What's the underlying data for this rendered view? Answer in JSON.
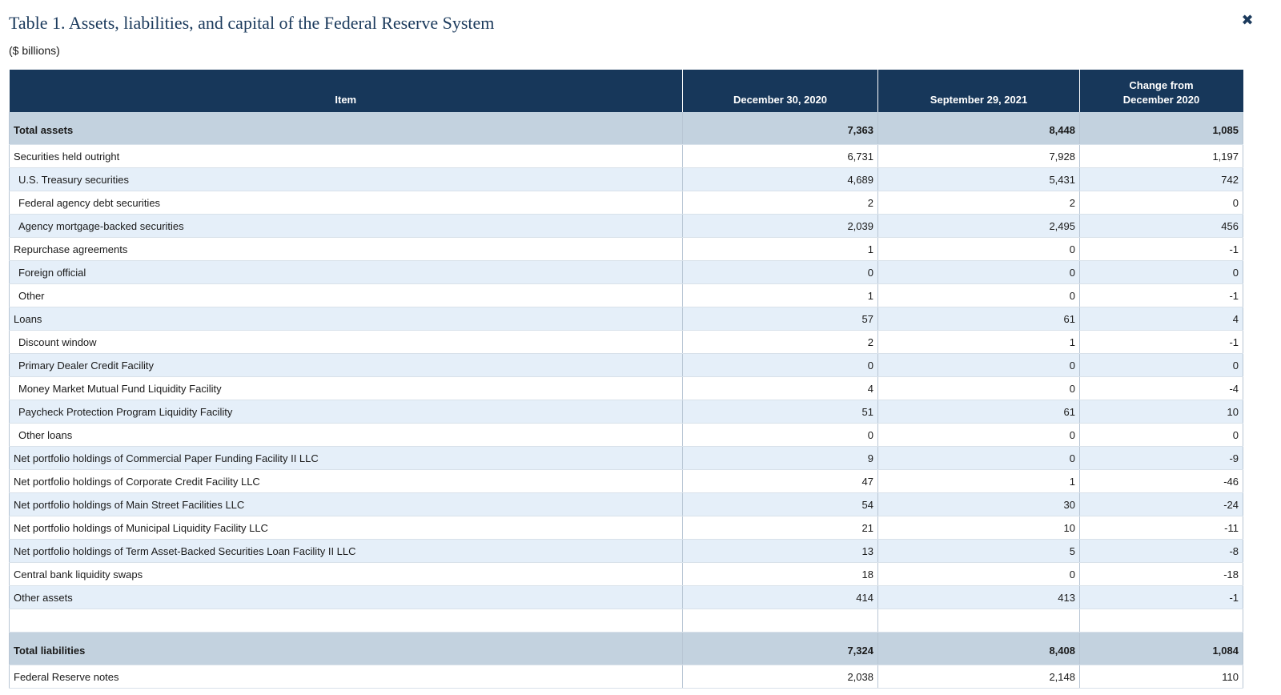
{
  "dialog": {
    "title": "Table 1. Assets, liabilities, and capital of the Federal Reserve System",
    "close_label": "✖",
    "subtitle": "($ billions)"
  },
  "table": {
    "headers": {
      "item": "Item",
      "col1": "December 30, 2020",
      "col2": "September 29, 2021",
      "col3_line1": "Change from",
      "col3_line2": "December 2020"
    },
    "rows": [
      {
        "label": "Total assets",
        "v1": "7,363",
        "v2": "8,448",
        "v3": "1,085"
      },
      {
        "label": "Securities held outright",
        "v1": "6,731",
        "v2": "7,928",
        "v3": "1,197"
      },
      {
        "label": "U.S. Treasury securities",
        "v1": "4,689",
        "v2": "5,431",
        "v3": "742"
      },
      {
        "label": "Federal agency debt securities",
        "v1": "2",
        "v2": "2",
        "v3": "0"
      },
      {
        "label": "Agency mortgage-backed securities",
        "v1": "2,039",
        "v2": "2,495",
        "v3": "456"
      },
      {
        "label": "Repurchase agreements",
        "v1": "1",
        "v2": "0",
        "v3": "-1"
      },
      {
        "label": "Foreign official",
        "v1": "0",
        "v2": "0",
        "v3": "0"
      },
      {
        "label": "Other",
        "v1": "1",
        "v2": "0",
        "v3": "-1"
      },
      {
        "label": "Loans",
        "v1": "57",
        "v2": "61",
        "v3": "4"
      },
      {
        "label": "Discount window",
        "v1": "2",
        "v2": "1",
        "v3": "-1"
      },
      {
        "label": "Primary Dealer Credit Facility",
        "v1": "0",
        "v2": "0",
        "v3": "0"
      },
      {
        "label": "Money Market Mutual Fund Liquidity Facility",
        "v1": "4",
        "v2": "0",
        "v3": "-4"
      },
      {
        "label": "Paycheck Protection Program Liquidity Facility",
        "v1": "51",
        "v2": "61",
        "v3": "10"
      },
      {
        "label": "Other loans",
        "v1": "0",
        "v2": "0",
        "v3": "0"
      },
      {
        "label": "Net portfolio holdings of Commercial Paper Funding Facility II LLC",
        "v1": "9",
        "v2": "0",
        "v3": "-9"
      },
      {
        "label": "Net portfolio holdings of Corporate Credit Facility LLC",
        "v1": "47",
        "v2": "1",
        "v3": "-46"
      },
      {
        "label": "Net portfolio holdings of Main Street Facilities LLC",
        "v1": "54",
        "v2": "30",
        "v3": "-24"
      },
      {
        "label": "Net portfolio holdings of Municipal Liquidity Facility LLC",
        "v1": "21",
        "v2": "10",
        "v3": "-11"
      },
      {
        "label": "Net portfolio holdings of Term Asset-Backed Securities Loan Facility II LLC",
        "v1": "13",
        "v2": "5",
        "v3": "-8"
      },
      {
        "label": "Central bank liquidity swaps",
        "v1": "18",
        "v2": "0",
        "v3": "-18"
      },
      {
        "label": "Other assets",
        "v1": "414",
        "v2": "413",
        "v3": "-1"
      },
      {
        "label": "",
        "v1": "",
        "v2": "",
        "v3": ""
      },
      {
        "label": "Total liabilities",
        "v1": "7,324",
        "v2": "8,408",
        "v3": "1,084"
      },
      {
        "label": "Federal Reserve notes",
        "v1": "2,038",
        "v2": "2,148",
        "v3": "110"
      }
    ]
  }
}
